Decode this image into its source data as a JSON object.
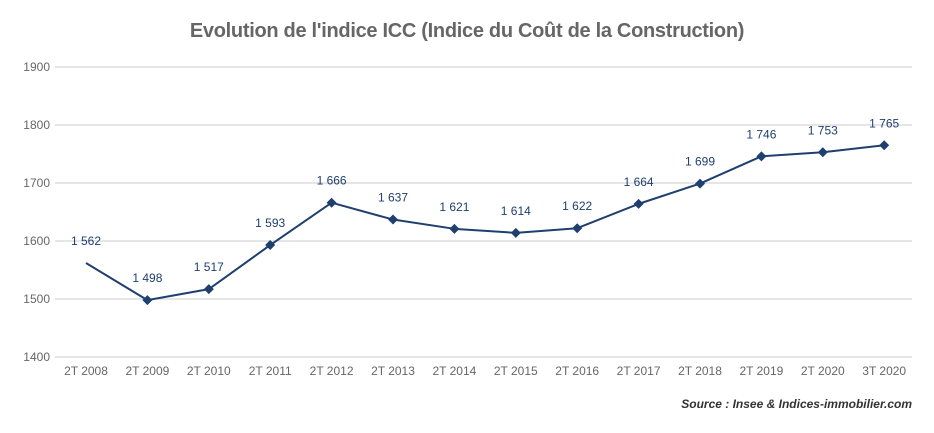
{
  "page": {
    "title": "Evolution de l'indice ICC (Indice du Coût de la Construction)",
    "source": "Source : Insee & Indices-immobilier.com"
  },
  "colors": {
    "series": "#1f3f6e",
    "grid": "#cccccc",
    "axis_text": "#666666"
  },
  "chart_data": {
    "type": "line",
    "title": "Evolution de l'indice ICC (Indice du Coût de la Construction)",
    "categories": [
      "2T 2008",
      "2T 2009",
      "2T 2010",
      "2T 2011",
      "2T 2012",
      "2T 2013",
      "2T 2014",
      "2T 2015",
      "2T 2016",
      "2T 2017",
      "2T 2018",
      "2T 2019",
      "2T 2020",
      "3T 2020"
    ],
    "series": [
      {
        "values": [
          1562,
          1498,
          1517,
          1593,
          1666,
          1637,
          1621,
          1614,
          1622,
          1664,
          1699,
          1746,
          1753,
          1765
        ],
        "labels": [
          "1 562",
          "1 498",
          "1 517",
          "1 593",
          "1 666",
          "1 637",
          "1 621",
          "1 614",
          "1 622",
          "1 664",
          "1 699",
          "1 746",
          "1 753",
          "1 765"
        ],
        "marker": "diamond"
      }
    ],
    "xlabel": "",
    "ylabel": "",
    "ylim": [
      1400,
      1900
    ],
    "yticks": [
      1400,
      1500,
      1600,
      1700,
      1800,
      1900
    ],
    "grid": true,
    "legend": "none"
  }
}
